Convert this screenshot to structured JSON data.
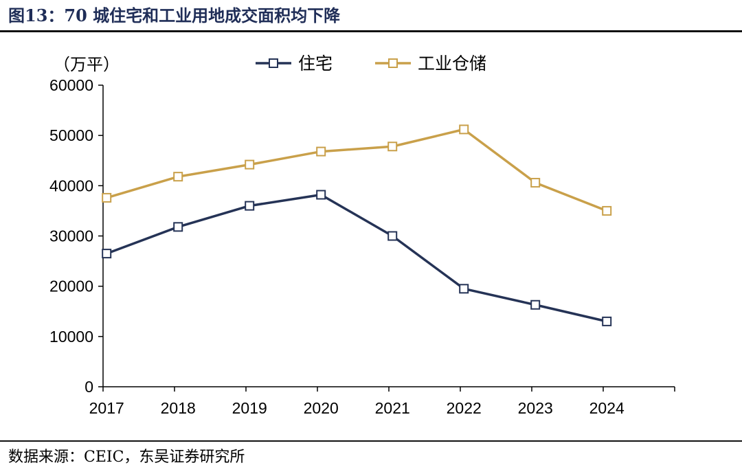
{
  "figure_title": "图13：70 城住宅和工业用地成交面积均下降",
  "source_note": "数据来源：CEIC，东吴证券研究所",
  "chart_data": {
    "type": "line",
    "title": "图13：70 城住宅和工业用地成交面积均下降",
    "unit_label": "（万平）",
    "xlabel": "",
    "ylabel": "（万平）",
    "categories": [
      "2017",
      "2018",
      "2019",
      "2020",
      "2021",
      "2022",
      "2023",
      "2024"
    ],
    "ylim": [
      0,
      60000
    ],
    "yticks": [
      0,
      10000,
      20000,
      30000,
      40000,
      50000,
      60000
    ],
    "grid": false,
    "legend_position": "top-center",
    "series": [
      {
        "name": "住宅",
        "color": "#253356",
        "values": [
          26500,
          31800,
          36000,
          38200,
          30000,
          19500,
          16300,
          13000
        ]
      },
      {
        "name": "工业仓储",
        "color": "#c9a04a",
        "values": [
          37600,
          41800,
          44200,
          46800,
          47800,
          51200,
          40600,
          35000
        ]
      }
    ]
  }
}
